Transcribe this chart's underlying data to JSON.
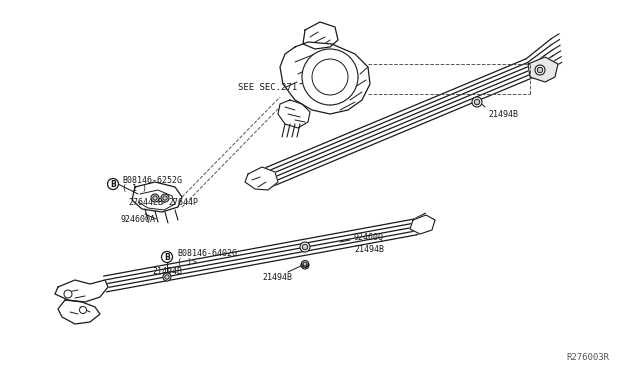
{
  "bg_color": "#ffffff",
  "fig_width": 6.4,
  "fig_height": 3.72,
  "dpi": 100,
  "line_color": "#1a1a1a",
  "diagram_ref": "R276003R",
  "labels": {
    "see_sec": "SEE SEC.271",
    "bolt1_label": "B08146-6252G",
    "bolt1_sub": "( 1 )",
    "bolt2_label": "B08146-6402G",
    "bolt2_sub": "( )>",
    "part1a": "27644EB",
    "part1b": "27644P",
    "part2": "92460QA",
    "clamp_upper": "92460Q",
    "clamp_lower": "92460Q",
    "part_21494B_1": "21494B",
    "part_21494B_2": "21494B",
    "part_21494B_3": "21494B",
    "part_21494B_4": "21494B",
    "part_21494B_5": "21494B"
  }
}
